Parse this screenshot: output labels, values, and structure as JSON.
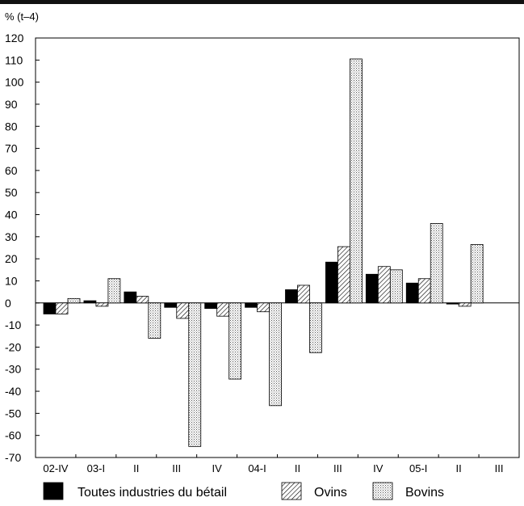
{
  "chart_data": {
    "type": "bar",
    "unit_label": "% (t–4)",
    "categories": [
      "02-IV",
      "03-I",
      "II",
      "III",
      "IV",
      "04-I",
      "II",
      "III",
      "IV",
      "05-I",
      "II",
      "III"
    ],
    "series": [
      {
        "name": "Toutes industries du bétail",
        "fill": "solid",
        "color": "#000000",
        "values": [
          -5,
          1,
          5,
          -2,
          -2.5,
          -2,
          6,
          18.5,
          13,
          9,
          -0.5,
          0
        ]
      },
      {
        "name": "Ovins",
        "fill": "hatch",
        "color": "#000000",
        "values": [
          -5,
          -1.5,
          3,
          -7,
          -6,
          -4,
          8,
          25.5,
          16.5,
          11,
          -1.5,
          0
        ]
      },
      {
        "name": "Bovins",
        "fill": "dots",
        "color": "#000000",
        "values": [
          2,
          11,
          -16,
          -65,
          -34.5,
          -46.5,
          -22.5,
          110.5,
          15,
          36,
          26.5,
          0
        ]
      }
    ],
    "ylim": [
      -70,
      120
    ],
    "yticks": [
      120,
      110,
      100,
      90,
      80,
      70,
      60,
      50,
      40,
      30,
      20,
      10,
      0,
      -10,
      -20,
      -30,
      -40,
      -50,
      -60,
      -70
    ],
    "grid": false,
    "legend_position": "bottom"
  }
}
